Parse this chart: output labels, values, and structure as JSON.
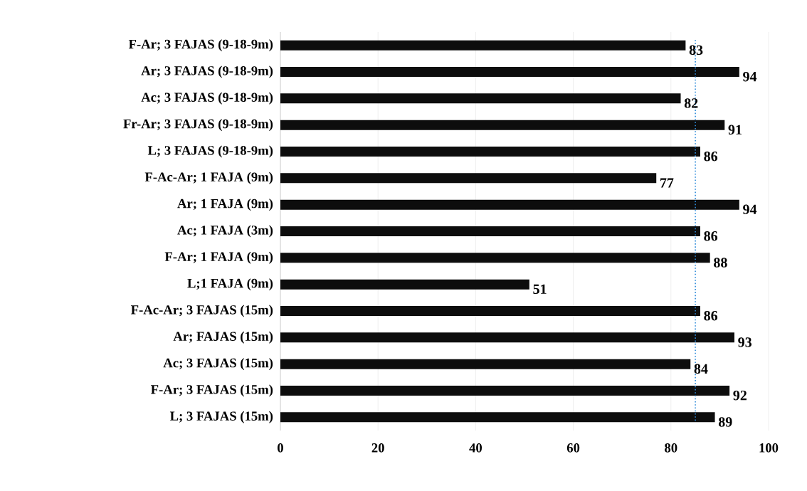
{
  "chart_data": {
    "type": "bar",
    "orientation": "horizontal",
    "categories": [
      "F-Ar; 3 FAJAS  (9-18-9m)",
      "Ar; 3 FAJAS  (9-18-9m)",
      "Ac; 3 FAJAS  (9-18-9m)",
      "Fr-Ar; 3 FAJAS  (9-18-9m)",
      "L; 3 FAJAS  (9-18-9m)",
      "F-Ac-Ar; 1 FAJA (9m)",
      "Ar; 1 FAJA (9m)",
      "Ac; 1 FAJA (3m)",
      "F-Ar; 1 FAJA (9m)",
      "L;1 FAJA (9m)",
      "F-Ac-Ar; 3 FAJAS  (15m)",
      "Ar; FAJAS  (15m)",
      "Ac; 3 FAJAS  (15m)",
      "F-Ar; 3 FAJAS  (15m)",
      "L;  3 FAJAS  (15m)"
    ],
    "values": [
      83,
      94,
      82,
      91,
      86,
      77,
      94,
      86,
      88,
      51,
      86,
      93,
      84,
      92,
      89
    ],
    "color": "#0d0d0d",
    "xlim": [
      0,
      100
    ],
    "xticks": [
      0,
      20,
      40,
      60,
      80,
      100
    ],
    "grid": "x",
    "data_labels": true,
    "ref_lines": [
      {
        "axis": "x",
        "value": 85,
        "color": "#2e8bd9",
        "line_style": "dotted"
      }
    ]
  }
}
